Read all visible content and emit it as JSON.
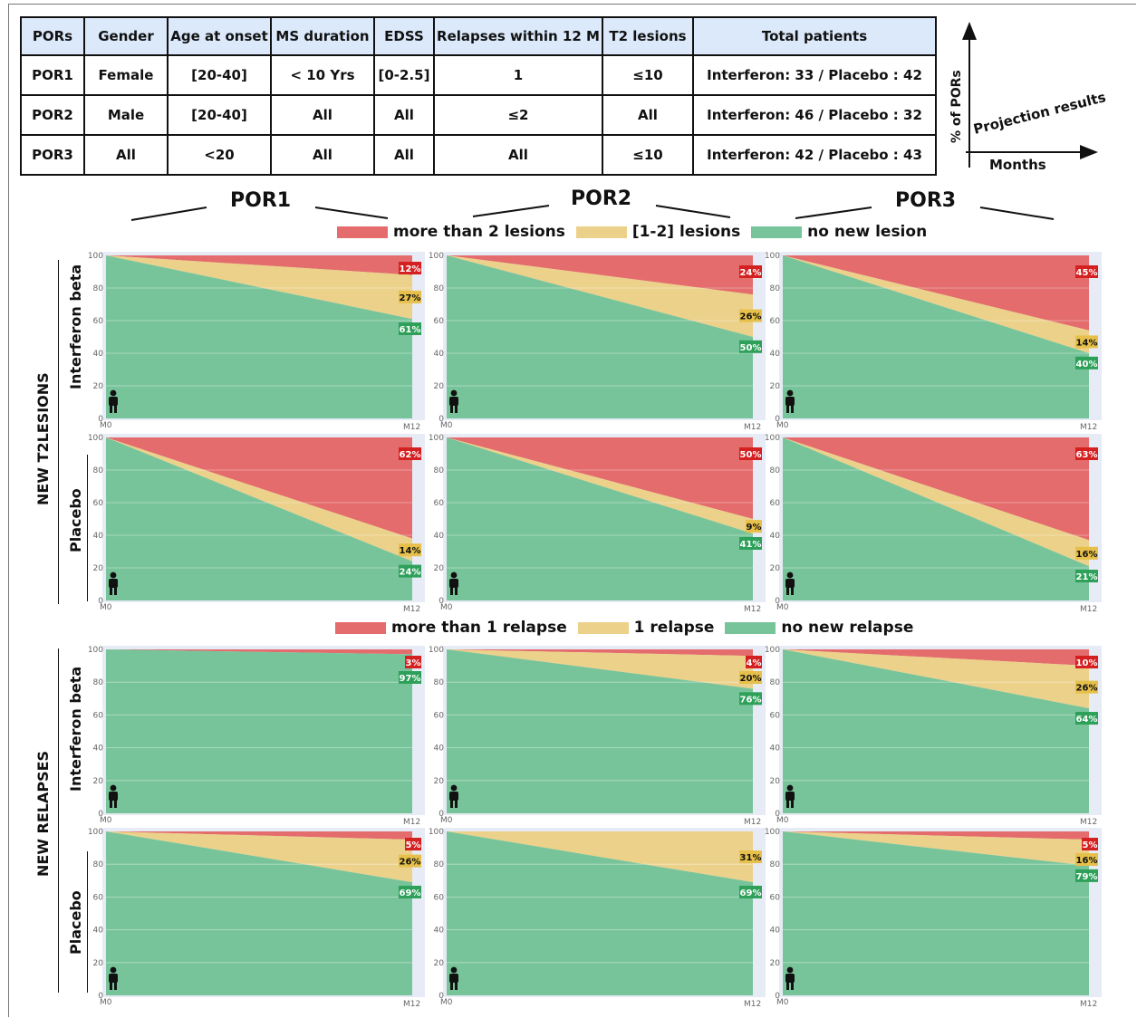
{
  "table": {
    "headers": [
      "PORs",
      "Gender",
      "Age at onset",
      "MS duration",
      "EDSS",
      "Relapses within 12 M",
      "T2 lesions",
      "Total patients"
    ],
    "rows": [
      [
        "POR1",
        "Female",
        "[20-40]",
        "< 10 Yrs",
        "[0-2.5]",
        "1",
        "≤10",
        "Interferon: 33 / Placebo : 42"
      ],
      [
        "POR2",
        "Male",
        "[20-40]",
        "All",
        "All",
        "≤2",
        "All",
        "Interferon: 46 / Placebo : 32"
      ],
      [
        "POR3",
        "All",
        "<20",
        "All",
        "All",
        "All",
        "≤10",
        "Interferon: 42 / Placebo : 43"
      ]
    ]
  },
  "axis_diagram": {
    "y_label": "% of PORs",
    "x_label": "Months",
    "curve_label": "Projection results"
  },
  "por_titles": [
    "POR1",
    "POR2",
    "POR3"
  ],
  "section_labels": {
    "lesions": "NEW T2LESIONS",
    "relapses": "NEW RELAPSES"
  },
  "row_labels": {
    "interferon": "Interferon beta",
    "placebo": "Placebo"
  },
  "legends": {
    "lesions": [
      "more than 2 lesions",
      "[1-2] lesions",
      "no new lesion"
    ],
    "relapses": [
      "more than 1 relapse",
      "1 relapse",
      "no new relapse"
    ]
  },
  "colors": {
    "red": "#e46c6c",
    "yellow": "#ecd18a",
    "green": "#78c49a",
    "panel_bg": "#e6ebf5",
    "label_red": "#d42020",
    "label_yellow": "#e6c04a",
    "label_green": "#2ea05a"
  },
  "chart_data": {
    "type": "area",
    "x": [
      "M0",
      "M12"
    ],
    "ylim": [
      0,
      100
    ],
    "yticks": [
      0,
      20,
      40,
      60,
      80,
      100
    ],
    "panels": [
      {
        "section": "NEW T2LESIONS",
        "arm": "Interferon beta",
        "por": "POR1",
        "red": 12,
        "yellow": 27,
        "green": 61,
        "labels": [
          "12%",
          "27%",
          "61%"
        ]
      },
      {
        "section": "NEW T2LESIONS",
        "arm": "Interferon beta",
        "por": "POR2",
        "red": 24,
        "yellow": 26,
        "green": 50,
        "labels": [
          "24%",
          "26%",
          "50%"
        ]
      },
      {
        "section": "NEW T2LESIONS",
        "arm": "Interferon beta",
        "por": "POR3",
        "red": 45,
        "yellow": 14,
        "green": 40,
        "labels": [
          "45%",
          "14%",
          "40%"
        ]
      },
      {
        "section": "NEW T2LESIONS",
        "arm": "Placebo",
        "por": "POR1",
        "red": 62,
        "yellow": 14,
        "green": 24,
        "labels": [
          "62%",
          "14%",
          "24%"
        ]
      },
      {
        "section": "NEW T2LESIONS",
        "arm": "Placebo",
        "por": "POR2",
        "red": 50,
        "yellow": 9,
        "green": 41,
        "labels": [
          "50%",
          "9%",
          "41%"
        ]
      },
      {
        "section": "NEW T2LESIONS",
        "arm": "Placebo",
        "por": "POR3",
        "red": 63,
        "yellow": 16,
        "green": 21,
        "labels": [
          "63%",
          "16%",
          "21%"
        ]
      },
      {
        "section": "NEW RELAPSES",
        "arm": "Interferon beta",
        "por": "POR1",
        "red": 3,
        "yellow": 0,
        "green": 97,
        "labels": [
          "3%",
          "",
          "97%"
        ]
      },
      {
        "section": "NEW RELAPSES",
        "arm": "Interferon beta",
        "por": "POR2",
        "red": 4,
        "yellow": 20,
        "green": 76,
        "labels": [
          "4%",
          "20%",
          "76%"
        ]
      },
      {
        "section": "NEW RELAPSES",
        "arm": "Interferon beta",
        "por": "POR3",
        "red": 10,
        "yellow": 26,
        "green": 64,
        "labels": [
          "10%",
          "26%",
          "64%"
        ]
      },
      {
        "section": "NEW RELAPSES",
        "arm": "Placebo",
        "por": "POR1",
        "red": 5,
        "yellow": 26,
        "green": 69,
        "labels": [
          "5%",
          "26%",
          "69%"
        ]
      },
      {
        "section": "NEW RELAPSES",
        "arm": "Placebo",
        "por": "POR2",
        "red": 0,
        "yellow": 31,
        "green": 69,
        "labels": [
          "",
          "31%",
          "69%"
        ]
      },
      {
        "section": "NEW RELAPSES",
        "arm": "Placebo",
        "por": "POR3",
        "red": 5,
        "yellow": 16,
        "green": 79,
        "labels": [
          "5%",
          "16%",
          "79%"
        ]
      }
    ]
  }
}
